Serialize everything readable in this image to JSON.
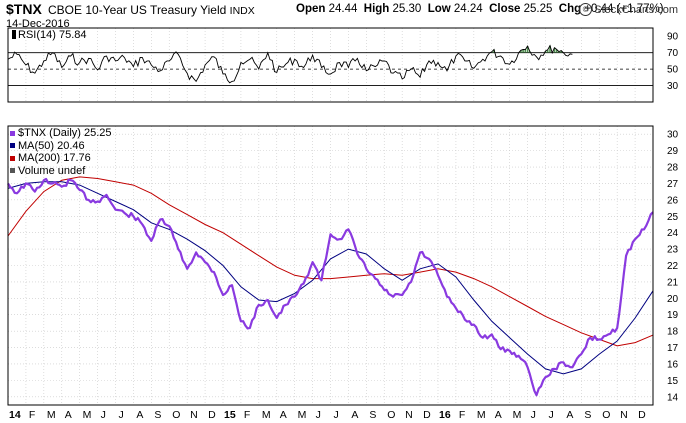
{
  "header": {
    "symbol": "$TNX",
    "name": "CBOE 10-Year US Treasury Yield",
    "exchange": "INDX",
    "date": "14-Dec-2016",
    "open_label": "Open",
    "open": "24.44",
    "high_label": "High",
    "high": "25.30",
    "low_label": "Low",
    "low": "24.24",
    "close_label": "Close",
    "close": "25.25",
    "chg_label": "Chg",
    "chg": "+0.44 (+1.77%)",
    "credit": "StockCharts.com",
    "credit_symbol": "©"
  },
  "colors": {
    "price": "#8a3ae0",
    "ma50": "#000080",
    "ma200": "#c00000",
    "rsi": "#000000",
    "rsi_overbought_fill": "#4f8f4f",
    "grid": "#c8c8c8"
  },
  "chart_data": [
    {
      "type": "line",
      "panel": "RSI",
      "title": "RSI(14) 75.84",
      "yticks": [
        30,
        50,
        70,
        90
      ],
      "ylim": [
        10,
        100
      ],
      "reference_lines": [
        30,
        50,
        70
      ],
      "series": [
        {
          "name": "RSI(14)",
          "values": [
            [
              0,
              62
            ],
            [
              0.5,
              68
            ],
            [
              1,
              55
            ],
            [
              1.5,
              45
            ],
            [
              2,
              60
            ],
            [
              2.5,
              70
            ],
            [
              3,
              52
            ],
            [
              3.5,
              66
            ],
            [
              4,
              58
            ],
            [
              4.5,
              63
            ],
            [
              5,
              49
            ],
            [
              5.5,
              66
            ],
            [
              6,
              60
            ],
            [
              6.5,
              64
            ],
            [
              7,
              53
            ],
            [
              7.5,
              64
            ],
            [
              8,
              55
            ],
            [
              8.5,
              48
            ],
            [
              9,
              60
            ],
            [
              9.5,
              68
            ],
            [
              10,
              45
            ],
            [
              10.5,
              35
            ],
            [
              11,
              55
            ],
            [
              11.5,
              65
            ],
            [
              12,
              44
            ],
            [
              12.5,
              35
            ],
            [
              13,
              58
            ],
            [
              13.5,
              62
            ],
            [
              14,
              50
            ],
            [
              14.5,
              70
            ],
            [
              15,
              46
            ],
            [
              15.5,
              56
            ],
            [
              16,
              62
            ],
            [
              16.5,
              52
            ],
            [
              17,
              67
            ],
            [
              17.5,
              52
            ],
            [
              18,
              44
            ],
            [
              18.5,
              58
            ],
            [
              19,
              52
            ],
            [
              19.5,
              63
            ],
            [
              20,
              48
            ],
            [
              20.5,
              53
            ],
            [
              21,
              60
            ],
            [
              21.5,
              45
            ],
            [
              22,
              38
            ],
            [
              22.5,
              50
            ],
            [
              23,
              40
            ],
            [
              23.5,
              60
            ],
            [
              24,
              58
            ],
            [
              24.5,
              48
            ],
            [
              25,
              66
            ],
            [
              25.5,
              60
            ],
            [
              26,
              51
            ],
            [
              26.5,
              62
            ],
            [
              27,
              71
            ],
            [
              27.5,
              66
            ],
            [
              28,
              56
            ],
            [
              28.5,
              70
            ],
            [
              29,
              78
            ],
            [
              29.5,
              65
            ],
            [
              30,
              72
            ],
            [
              30.5,
              76
            ],
            [
              31,
              70
            ],
            [
              31.5,
              68
            ]
          ]
        }
      ]
    },
    {
      "type": "line",
      "panel": "price",
      "categories": [
        "14",
        "F",
        "M",
        "A",
        "M",
        "J",
        "J",
        "A",
        "S",
        "O",
        "N",
        "D",
        "15",
        "F",
        "M",
        "A",
        "M",
        "J",
        "J",
        "A",
        "S",
        "O",
        "N",
        "D",
        "16",
        "F",
        "M",
        "A",
        "M",
        "J",
        "J",
        "A",
        "S",
        "O",
        "N",
        "D"
      ],
      "yticks": [
        14,
        15,
        16,
        17,
        18,
        19,
        20,
        21,
        22,
        23,
        24,
        25,
        26,
        27,
        28,
        29,
        30
      ],
      "ylim": [
        13.5,
        30.5
      ],
      "legend": [
        {
          "name": "$TNX (Daily) 25.25",
          "color": "#8a3ae0"
        },
        {
          "name": "MA(50) 20.46",
          "color": "#000080"
        },
        {
          "name": "MA(200) 17.76",
          "color": "#c00000"
        },
        {
          "name": "Volume undef",
          "color": "#555555"
        }
      ],
      "series": [
        {
          "name": "$TNX (Daily)",
          "values": [
            [
              0,
              27.0
            ],
            [
              0.5,
              26.4
            ],
            [
              1,
              27.0
            ],
            [
              1.5,
              26.5
            ],
            [
              2,
              27.2
            ],
            [
              2.5,
              27.0
            ],
            [
              3,
              26.8
            ],
            [
              3.5,
              27.2
            ],
            [
              4,
              26.6
            ],
            [
              4.5,
              26.0
            ],
            [
              5,
              25.9
            ],
            [
              5.5,
              26.3
            ],
            [
              6,
              25.4
            ],
            [
              6.5,
              25.2
            ],
            [
              7,
              25.0
            ],
            [
              7.5,
              24.5
            ],
            [
              8,
              23.5
            ],
            [
              8.5,
              24.8
            ],
            [
              9,
              24.4
            ],
            [
              9.5,
              23.0
            ],
            [
              10,
              21.8
            ],
            [
              10.5,
              22.8
            ],
            [
              11,
              22.2
            ],
            [
              11.5,
              21.6
            ],
            [
              12,
              20.2
            ],
            [
              12.5,
              20.8
            ],
            [
              13,
              18.6
            ],
            [
              13.5,
              18.2
            ],
            [
              14,
              19.6
            ],
            [
              14.5,
              19.9
            ],
            [
              15,
              18.8
            ],
            [
              15.5,
              19.6
            ],
            [
              16,
              20.1
            ],
            [
              16.5,
              20.9
            ],
            [
              17,
              22.2
            ],
            [
              17.5,
              21.1
            ],
            [
              18,
              23.9
            ],
            [
              18.5,
              23.6
            ],
            [
              19,
              24.2
            ],
            [
              19.5,
              22.7
            ],
            [
              20,
              21.8
            ],
            [
              20.5,
              21.2
            ],
            [
              21,
              20.5
            ],
            [
              21.5,
              20.1
            ],
            [
              22,
              20.2
            ],
            [
              22.5,
              21.0
            ],
            [
              23,
              22.8
            ],
            [
              23.5,
              22.4
            ],
            [
              24,
              21.4
            ],
            [
              24.5,
              20.1
            ],
            [
              25,
              19.4
            ],
            [
              25.5,
              18.7
            ],
            [
              26,
              18.4
            ],
            [
              26.5,
              17.6
            ],
            [
              27,
              17.8
            ],
            [
              27.5,
              16.9
            ],
            [
              28,
              16.8
            ],
            [
              28.5,
              16.5
            ],
            [
              29,
              15.8
            ],
            [
              29.5,
              14.1
            ],
            [
              30,
              15.2
            ],
            [
              30.5,
              15.7
            ],
            [
              31,
              16.1
            ],
            [
              31.5,
              15.8
            ],
            [
              32,
              16.6
            ],
            [
              32.5,
              17.6
            ],
            [
              33,
              17.5
            ],
            [
              33.5,
              17.8
            ],
            [
              34,
              18.2
            ],
            [
              34.5,
              22.6
            ],
            [
              35,
              23.6
            ],
            [
              35.5,
              24.2
            ],
            [
              36,
              25.25
            ]
          ]
        },
        {
          "name": "MA(50)",
          "values": [
            [
              0,
              26.7
            ],
            [
              1,
              27.0
            ],
            [
              2,
              27.1
            ],
            [
              3,
              27.1
            ],
            [
              4,
              26.9
            ],
            [
              5,
              26.4
            ],
            [
              6,
              25.9
            ],
            [
              7,
              25.4
            ],
            [
              8,
              24.6
            ],
            [
              9,
              24.2
            ],
            [
              10,
              23.6
            ],
            [
              11,
              22.9
            ],
            [
              12,
              22.0
            ],
            [
              13,
              20.7
            ],
            [
              14,
              19.9
            ],
            [
              15,
              19.8
            ],
            [
              16,
              20.3
            ],
            [
              17,
              21.1
            ],
            [
              18,
              22.4
            ],
            [
              19,
              23.0
            ],
            [
              20,
              22.7
            ],
            [
              21,
              21.8
            ],
            [
              22,
              21.1
            ],
            [
              23,
              21.8
            ],
            [
              24,
              22.1
            ],
            [
              25,
              21.3
            ],
            [
              26,
              19.9
            ],
            [
              27,
              18.6
            ],
            [
              28,
              17.6
            ],
            [
              29,
              16.6
            ],
            [
              30,
              15.7
            ],
            [
              31,
              15.4
            ],
            [
              32,
              15.7
            ],
            [
              33,
              16.6
            ],
            [
              34,
              17.4
            ],
            [
              35,
              18.8
            ],
            [
              36,
              20.46
            ]
          ]
        },
        {
          "name": "MA(200)",
          "values": [
            [
              0,
              23.8
            ],
            [
              1,
              25.3
            ],
            [
              2,
              26.5
            ],
            [
              3,
              27.2
            ],
            [
              4,
              27.4
            ],
            [
              5,
              27.3
            ],
            [
              6,
              27.1
            ],
            [
              7,
              26.9
            ],
            [
              8,
              26.4
            ],
            [
              9,
              25.7
            ],
            [
              10,
              25.1
            ],
            [
              11,
              24.5
            ],
            [
              12,
              24.0
            ],
            [
              13,
              23.3
            ],
            [
              14,
              22.6
            ],
            [
              15,
              21.9
            ],
            [
              16,
              21.4
            ],
            [
              17,
              21.2
            ],
            [
              18,
              21.2
            ],
            [
              19,
              21.3
            ],
            [
              20,
              21.4
            ],
            [
              21,
              21.5
            ],
            [
              22,
              21.4
            ],
            [
              23,
              21.6
            ],
            [
              24,
              21.8
            ],
            [
              25,
              21.6
            ],
            [
              26,
              21.2
            ],
            [
              27,
              20.7
            ],
            [
              28,
              20.1
            ],
            [
              29,
              19.5
            ],
            [
              30,
              18.9
            ],
            [
              31,
              18.4
            ],
            [
              32,
              17.9
            ],
            [
              33,
              17.5
            ],
            [
              34,
              17.1
            ],
            [
              35,
              17.3
            ],
            [
              36,
              17.76
            ]
          ]
        }
      ]
    }
  ]
}
